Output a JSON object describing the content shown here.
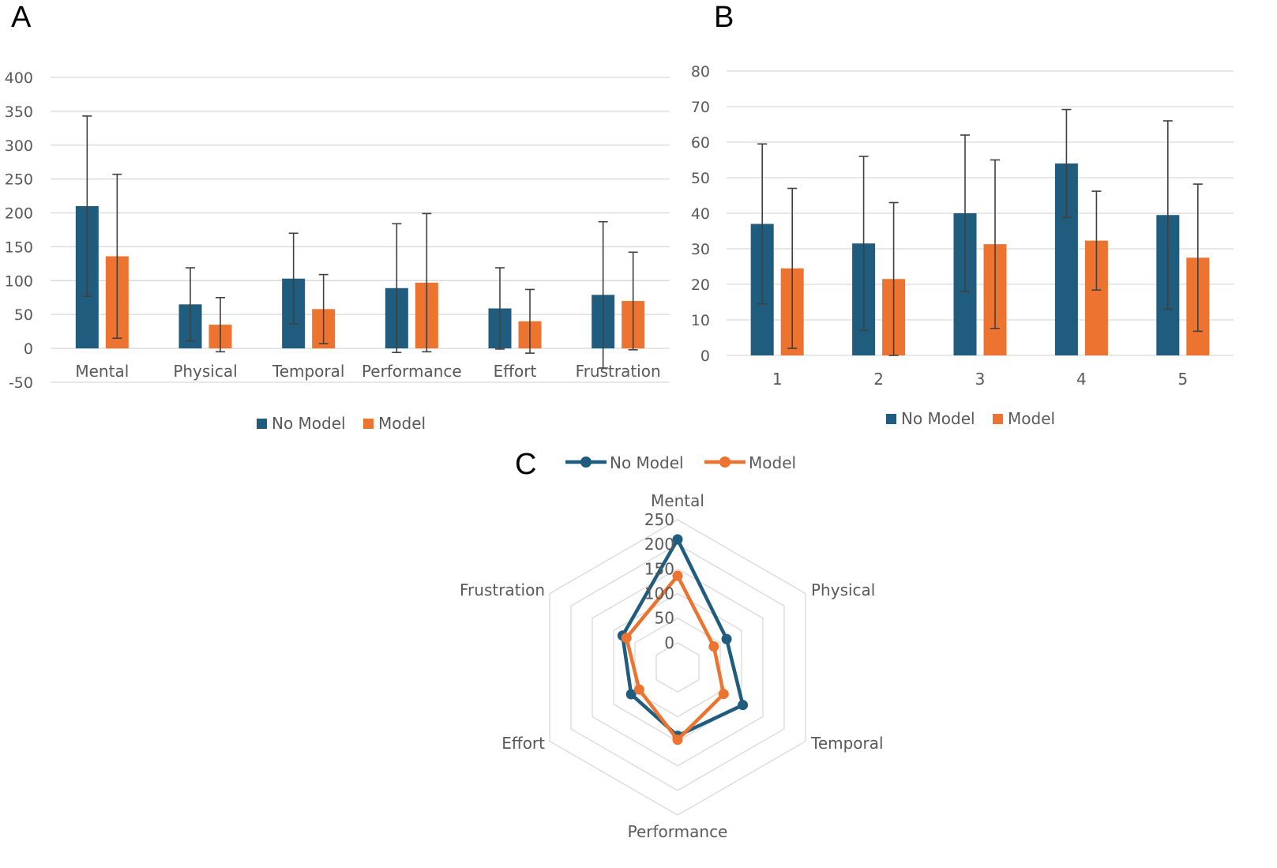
{
  "chart_data": [
    {
      "panel": "A",
      "type": "bar",
      "categories": [
        "Mental",
        "Physical",
        "Temporal",
        "Performance",
        "Effort",
        "Frustration"
      ],
      "series": [
        {
          "name": "No Model",
          "color": "#1f5c7d",
          "values": [
            210,
            65,
            103,
            89,
            59,
            79
          ],
          "error": [
            133,
            54,
            67,
            95,
            60,
            108
          ]
        },
        {
          "name": "Model",
          "color": "#ed7330",
          "values": [
            136,
            35,
            58,
            97,
            40,
            70
          ],
          "error": [
            121,
            40,
            51,
            102,
            47,
            72
          ]
        }
      ],
      "y_ticks": [
        "400",
        "350",
        "300",
        "250",
        "200",
        "150",
        "100",
        "50",
        "0",
        "-50"
      ],
      "ylim": [
        -50,
        400
      ],
      "legend": "bottom"
    },
    {
      "panel": "B",
      "type": "bar",
      "categories": [
        "1",
        "2",
        "3",
        "4",
        "5"
      ],
      "series": [
        {
          "name": "No Model",
          "color": "#1f5c7d",
          "values": [
            37,
            31.5,
            40,
            54,
            39.5
          ],
          "error": [
            22.5,
            24.5,
            22,
            15.2,
            26.5
          ]
        },
        {
          "name": "Model",
          "color": "#ed7330",
          "values": [
            24.5,
            21.5,
            31.3,
            32.3,
            27.5
          ],
          "error": [
            22.5,
            21.5,
            23.7,
            13.9,
            20.7
          ]
        }
      ],
      "y_ticks": [
        "80",
        "70",
        "60",
        "50",
        "40",
        "30",
        "20",
        "10",
        "0"
      ],
      "ylim": [
        0,
        80
      ],
      "legend": "bottom"
    },
    {
      "panel": "C",
      "type": "radar",
      "categories": [
        "Mental",
        "Physical",
        "Temporal",
        "Performance",
        "Effort",
        "Frustration"
      ],
      "series": [
        {
          "name": "No Model",
          "color": "#1f5c7d",
          "values": [
            210,
            65,
            103,
            89,
            59,
            79
          ]
        },
        {
          "name": "Model",
          "color": "#ed7330",
          "values": [
            136,
            35,
            58,
            97,
            40,
            70
          ]
        }
      ],
      "r_ticks": [
        "250",
        "200",
        "150",
        "100",
        "50",
        "0"
      ],
      "rlim": [
        -50,
        250
      ],
      "legend": "top"
    }
  ]
}
